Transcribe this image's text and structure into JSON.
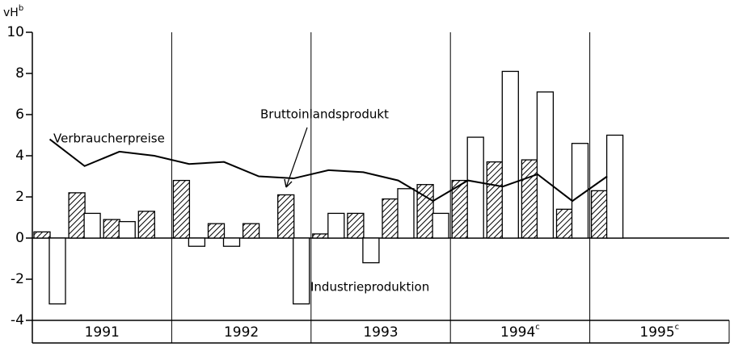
{
  "chart_data": {
    "type": "bar",
    "y_label": "vH",
    "y_label_sup": "b",
    "categories": [
      null,
      null,
      null,
      null,
      null,
      null,
      null,
      null,
      null,
      null,
      null,
      null,
      null,
      null,
      null,
      null,
      null
    ],
    "years": [
      {
        "label": "1991"
      },
      {
        "label": "1992"
      },
      {
        "label": "1993"
      },
      {
        "label": "1994",
        "sup": "c"
      },
      {
        "label": "1995",
        "sup": "c"
      }
    ],
    "series": [
      {
        "name": "Bruttoinlandsprodukt",
        "kind": "bar",
        "pattern": "hatch",
        "color": "#000000",
        "values": [
          0.3,
          2.2,
          0.9,
          1.3,
          2.8,
          0.7,
          0.7,
          2.1,
          0.2,
          1.2,
          1.9,
          2.6,
          2.8,
          3.7,
          3.8,
          1.4,
          2.3
        ]
      },
      {
        "name": "Industrieproduktion",
        "kind": "bar",
        "pattern": "none",
        "color": "#000000",
        "values": [
          -3.2,
          1.2,
          0.8,
          0,
          -0.4,
          -0.4,
          0,
          -3.2,
          1.2,
          -1.2,
          2.4,
          1.2,
          4.9,
          8.1,
          7.1,
          4.6,
          5.0
        ]
      },
      {
        "name": "Verbraucherpreise",
        "kind": "line",
        "color": "#000000",
        "values": [
          4.8,
          3.5,
          4.2,
          4.0,
          3.6,
          3.7,
          3.0,
          2.9,
          3.3,
          3.2,
          2.8,
          1.8,
          2.8,
          2.5,
          3.1,
          1.8,
          3.0
        ]
      }
    ],
    "ylim": [
      -4,
      10
    ],
    "yticks": [
      -4,
      -2,
      0,
      2,
      4,
      6,
      8,
      10
    ]
  }
}
